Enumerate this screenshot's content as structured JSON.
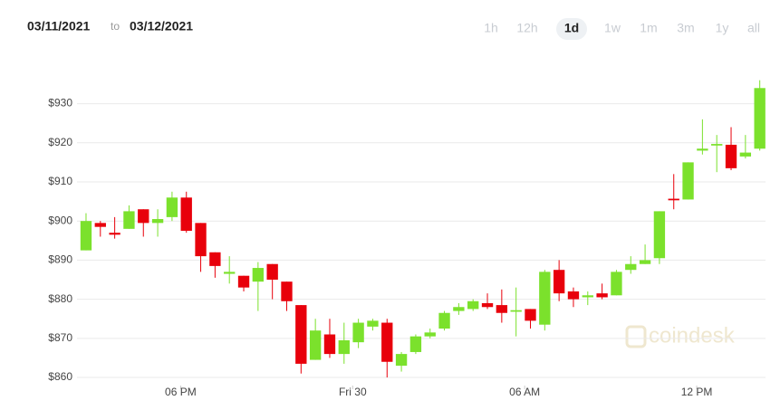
{
  "header": {
    "from": "03/11/2021",
    "separator": "to",
    "to": "03/12/2021",
    "ranges": [
      "1h",
      "12h",
      "1d",
      "1w",
      "1m",
      "3m",
      "1y",
      "all"
    ],
    "selected_range": 2
  },
  "chart_data": {
    "type": "candlestick",
    "watermark": "coindesk",
    "up_color": "#7be12c",
    "down_color": "#e8000b",
    "grid": true,
    "x": [
      0,
      1,
      2,
      3,
      4,
      5,
      6,
      7,
      8,
      9,
      10,
      11,
      12,
      13,
      14,
      15,
      16,
      17,
      18,
      19,
      20,
      21,
      22,
      23,
      24,
      25,
      26,
      27,
      28,
      29,
      30,
      31,
      32,
      33,
      34,
      35,
      36,
      37,
      38,
      39,
      40,
      41,
      42,
      43,
      44,
      45,
      46,
      47
    ],
    "open": [
      892.5,
      899.5,
      897,
      898,
      903,
      899.5,
      901,
      906,
      899.5,
      892,
      886.5,
      886,
      884.5,
      889,
      884.5,
      878.5,
      864.5,
      871,
      866,
      869,
      873,
      874,
      863,
      866.5,
      870.5,
      872.5,
      877,
      877.5,
      879,
      878.5,
      876.8,
      877.5,
      873.5,
      887.5,
      882,
      880.5,
      881.5,
      881,
      887.5,
      889,
      890.5,
      905.7,
      905.5,
      918,
      919.3,
      919.5,
      916.5,
      918.5
    ],
    "high": [
      902,
      900,
      901,
      904,
      903,
      903,
      907.5,
      907.5,
      899.5,
      892,
      891,
      886,
      889.5,
      889,
      884.5,
      878.5,
      875,
      875,
      874,
      875,
      875,
      875,
      866.5,
      871,
      872.5,
      877,
      879,
      880,
      881.5,
      882.5,
      883,
      877.5,
      887.5,
      890,
      883,
      882,
      884,
      887.5,
      891,
      894,
      902.5,
      912,
      915,
      926,
      922,
      924,
      922,
      936
    ],
    "low": [
      892.5,
      896,
      895.5,
      898,
      896,
      896,
      900,
      897,
      887,
      885.5,
      884,
      882,
      877,
      880,
      877,
      861,
      864.5,
      865,
      863.5,
      867.5,
      872,
      860,
      861.5,
      866,
      870,
      872,
      876,
      877,
      877.5,
      874,
      870.5,
      872.5,
      872,
      879.5,
      878,
      878.5,
      880,
      881,
      886.5,
      889,
      889,
      903,
      905.5,
      917,
      912.5,
      913,
      916,
      918
    ],
    "close": [
      900,
      898.5,
      896.5,
      902.5,
      899.5,
      900.5,
      906,
      897.5,
      891,
      888.5,
      887,
      883,
      888,
      885,
      879.5,
      863.5,
      872,
      866,
      869.5,
      874,
      874.5,
      864,
      866,
      870.5,
      871.5,
      876.5,
      878,
      879.5,
      878,
      876.5,
      877.2,
      874.5,
      887,
      881.5,
      880,
      881,
      880.5,
      887,
      889,
      890,
      902.5,
      905.3,
      915,
      918.5,
      919.7,
      913.5,
      917.5,
      934
    ],
    "xlim": [
      -0.63,
      47.4
    ],
    "xticks": [
      {
        "value": 6.6,
        "label": "06 PM"
      },
      {
        "value": 18.6,
        "label": "Fri 30"
      },
      {
        "value": 30.6,
        "label": "06 AM"
      },
      {
        "value": 42.6,
        "label": "12 PM"
      }
    ],
    "ylim": [
      857,
      938
    ],
    "yticks": [
      {
        "value": 860,
        "label": "$860"
      },
      {
        "value": 870,
        "label": "$870"
      },
      {
        "value": 880,
        "label": "$880"
      },
      {
        "value": 890,
        "label": "$890"
      },
      {
        "value": 900,
        "label": "$900"
      },
      {
        "value": 910,
        "label": "$910"
      },
      {
        "value": 920,
        "label": "$920"
      },
      {
        "value": 930,
        "label": "$930"
      }
    ]
  }
}
